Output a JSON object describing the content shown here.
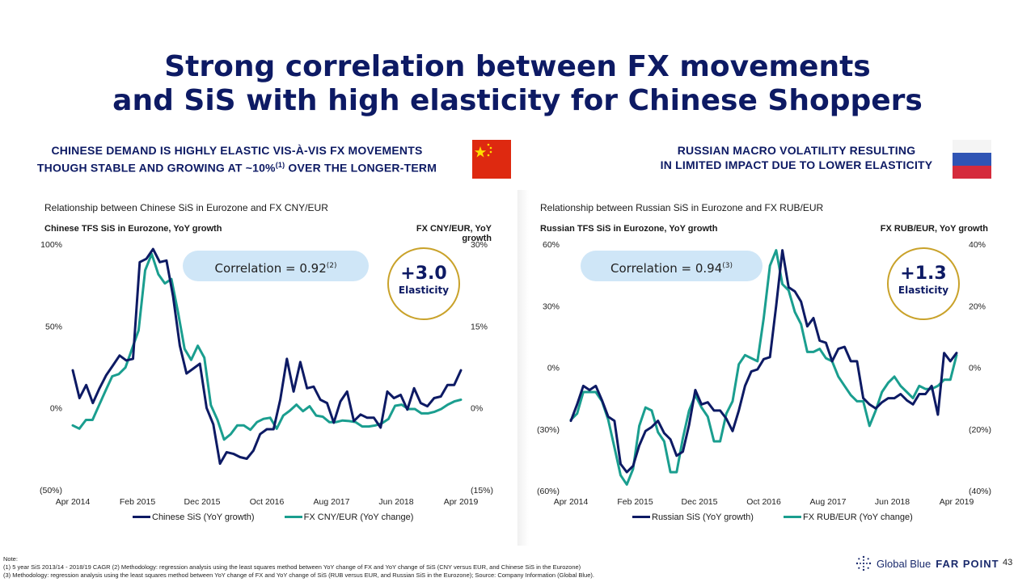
{
  "slide": {
    "title_line1": "Strong correlation between FX movements",
    "title_line2": "and SiS with high elasticity for Chinese Shoppers",
    "page_number": "43"
  },
  "left": {
    "subtitle_line1": "CHINESE DEMAND IS HIGHLY ELASTIC VIS-À-VIS FX MOVEMENTS",
    "subtitle_line2_pre": "THOUGH STABLE AND GROWING AT ~10%",
    "subtitle_sup": "(1)",
    "subtitle_line2_post": " OVER THE LONGER-TERM",
    "flag": "china-flag",
    "correlation_label": "Correlation = 0.92",
    "correlation_sup": "(2)",
    "elasticity_value": "+3.0",
    "elasticity_label": "Elasticity"
  },
  "right": {
    "subtitle_line1": "RUSSIAN MACRO VOLATILITY RESULTING",
    "subtitle_line2": "IN LIMITED IMPACT DUE TO LOWER ELASTICITY",
    "flag": "russia-flag",
    "correlation_label": "Correlation = 0.94",
    "correlation_sup": "(3)",
    "elasticity_value": "+1.3",
    "elasticity_label": "Elasticity"
  },
  "footnote": {
    "label": "Note:",
    "line1": "(1) 5 year SiS 2013/14 - 2018/19 CAGR (2) Methodology: regression analysis using the least squares method between YoY change of FX and YoY change of SiS (CNY versus EUR, and Chinese SiS in the Eurozone)",
    "line2": "(3) Methodology: regression analysis using the least squares method between YoY change of FX and YoY change of SiS (RUB versus EUR, and Russian SiS in the Eurozone); Source: Company Information (Global Blue)."
  },
  "logo": {
    "brand": "Global Blue",
    "product": "FAR POINT"
  },
  "colors": {
    "navy": "#0d1a64",
    "teal": "#1a9e8f",
    "oval": "#cfe6f7",
    "gold": "#c9a22a"
  },
  "chart_data": [
    {
      "type": "line",
      "title": "Relationship between Chinese SiS in Eurozone and FX CNY/EUR",
      "ylabel": "Chinese TFS SiS in Eurozone, YoY growth",
      "y2label": "FX CNY/EUR, YoY  growth",
      "ylim": [
        -50,
        100
      ],
      "y2lim": [
        -15,
        30
      ],
      "yticks": [
        "100%",
        "50%",
        "0%",
        "(50%)"
      ],
      "y2ticks": [
        "30%",
        "15%",
        "0%",
        "(15%)"
      ],
      "xticks": [
        "Apr 2014",
        "Feb 2015",
        "Dec 2015",
        "Oct 2016",
        "Aug 2017",
        "Jun 2018",
        "Apr 2019"
      ],
      "series": [
        {
          "name": "Chinese SiS (YoY growth)",
          "axis": "left",
          "color": "#0d1a64",
          "values": [
            23,
            6,
            14,
            3,
            12,
            20,
            26,
            32,
            29,
            30,
            89,
            91,
            97,
            89,
            90,
            68,
            38,
            21,
            24,
            27,
            0,
            -10,
            -34,
            -27,
            -28,
            -30,
            -31,
            -26,
            -16,
            -13,
            -13,
            5,
            30,
            10,
            28,
            12,
            13,
            5,
            3,
            -9,
            4,
            10,
            -8,
            -4,
            -6,
            -6,
            -12,
            10,
            6,
            8,
            -1,
            12,
            3,
            1,
            6,
            7,
            14,
            14,
            23
          ]
        },
        {
          "name": "FX CNY/EUR (YoY change)",
          "axis": "right",
          "color": "#1a9e8f",
          "values": [
            -3.2,
            -3.8,
            -2.2,
            -2.2,
            0.5,
            3.2,
            5.8,
            6.2,
            7.4,
            10.8,
            14.2,
            25.2,
            28.2,
            24.5,
            22.8,
            23.6,
            17.5,
            10.8,
            8.8,
            11.4,
            9.2,
            0.5,
            -2.2,
            -5.8,
            -4.8,
            -3.2,
            -3.2,
            -4.0,
            -2.6,
            -2.0,
            -1.8,
            -3.8,
            -1.4,
            -0.5,
            0.6,
            -0.6,
            0.3,
            -1.4,
            -1.6,
            -2.6,
            -2.6,
            -2.3,
            -2.4,
            -2.6,
            -3.4,
            -3.4,
            -3.2,
            -2.8,
            -2.0,
            0.4,
            0.6,
            -0.2,
            -0.2,
            -1.0,
            -1.0,
            -0.7,
            -0.2,
            0.6,
            1.2,
            1.5
          ]
        }
      ]
    },
    {
      "type": "line",
      "title": "Relationship between Russian SiS in Eurozone and FX RUB/EUR",
      "ylabel": "Russian TFS SiS in Eurozone, YoY growth",
      "y2label": "FX RUB/EUR, YoY growth",
      "ylim": [
        -60,
        60
      ],
      "y2lim": [
        -40,
        40
      ],
      "yticks": [
        "60%",
        "30%",
        "0%",
        "(30%)",
        "(60%)"
      ],
      "y2ticks": [
        "40%",
        "20%",
        "0%",
        "(20%)",
        "(40%)"
      ],
      "xticks": [
        "Apr 2014",
        "Feb 2015",
        "Dec 2015",
        "Oct 2016",
        "Aug 2017",
        "Jun 2018",
        "Apr 2019"
      ],
      "series": [
        {
          "name": "Russian SiS (YoY growth)",
          "axis": "left",
          "color": "#0d1a64",
          "values": [
            -26,
            -18,
            -9,
            -11,
            -9,
            -16,
            -24,
            -26,
            -47,
            -51,
            -48,
            -38,
            -31,
            -29,
            -26,
            -32,
            -35,
            -43,
            -41,
            -28,
            -11,
            -18,
            -17,
            -21,
            -21,
            -25,
            -31,
            -21,
            -9,
            -2,
            -1,
            4,
            5,
            30,
            57,
            39,
            37,
            32,
            20,
            24,
            13,
            12,
            3,
            9,
            10,
            3,
            3,
            -15,
            -18,
            -20,
            -17,
            -15,
            -15,
            -13,
            -16,
            -18,
            -13,
            -13,
            -9,
            -23,
            7,
            3,
            7
          ]
        },
        {
          "name": "FX RUB/EUR (YoY change)",
          "axis": "right",
          "color": "#1a9e8f",
          "values": [
            -17,
            -15,
            -8,
            -8,
            -8,
            -11,
            -17,
            -26,
            -35,
            -38,
            -33,
            -19,
            -13,
            -14,
            -21,
            -24,
            -34,
            -34,
            -23,
            -14,
            -9,
            -13,
            -16,
            -24,
            -24,
            -15,
            -11,
            1,
            4,
            3,
            2,
            16,
            33,
            38,
            27,
            25,
            18,
            14,
            5,
            5,
            6,
            3,
            2,
            -3,
            -6,
            -9,
            -11,
            -11,
            -19,
            -14,
            -8,
            -5,
            -3,
            -6,
            -8,
            -10,
            -6,
            -7,
            -7,
            -6,
            -4,
            -4,
            4
          ]
        }
      ]
    }
  ]
}
